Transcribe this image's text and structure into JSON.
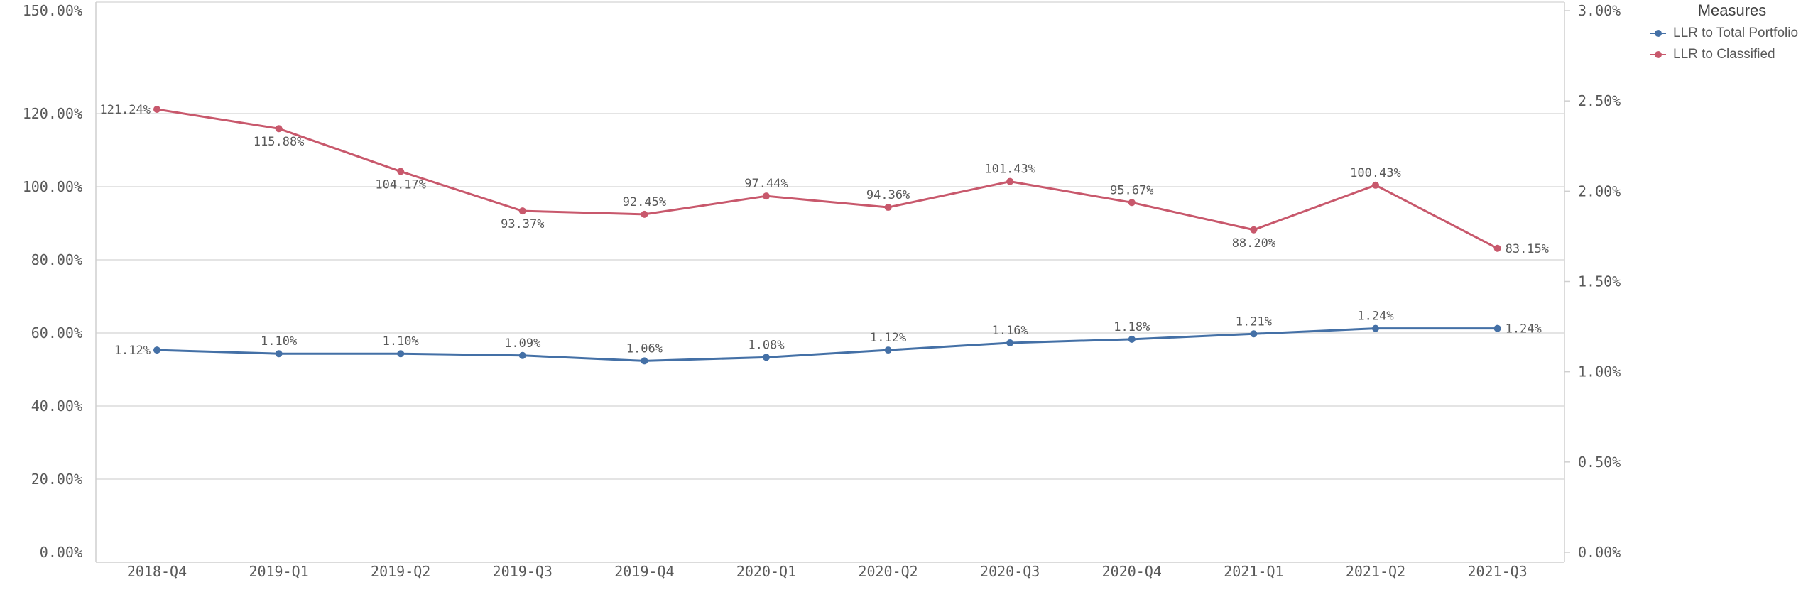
{
  "chart_data": {
    "type": "line",
    "categories": [
      "2018-Q4",
      "2019-Q1",
      "2019-Q2",
      "2019-Q3",
      "2019-Q4",
      "2020-Q1",
      "2020-Q2",
      "2020-Q3",
      "2020-Q4",
      "2021-Q1",
      "2021-Q2",
      "2021-Q3"
    ],
    "left_axis": {
      "ticks": [
        "0.00%",
        "20.00%",
        "40.00%",
        "60.00%",
        "80.00%",
        "100.00%",
        "120.00%",
        "150.00%"
      ],
      "tick_values": [
        0,
        20,
        40,
        60,
        80,
        100,
        120,
        150
      ],
      "range": [
        0,
        150
      ]
    },
    "right_axis": {
      "ticks": [
        "0.00%",
        "0.50%",
        "1.00%",
        "1.50%",
        "2.00%",
        "2.50%",
        "3.00%"
      ],
      "tick_values": [
        0,
        0.5,
        1.0,
        1.5,
        2.0,
        2.5,
        3.0
      ],
      "range": [
        0,
        3.0
      ]
    },
    "legend_title": "Measures",
    "legend_position": "top-right",
    "grid": true,
    "series": [
      {
        "name": "LLR to Total Portfolio",
        "axis": "right",
        "color": "#4470a6",
        "values": [
          1.12,
          1.1,
          1.1,
          1.09,
          1.06,
          1.08,
          1.12,
          1.16,
          1.18,
          1.21,
          1.24,
          1.24
        ],
        "labels": [
          "1.12%",
          "1.10%",
          "1.10%",
          "1.09%",
          "1.06%",
          "1.08%",
          "1.12%",
          "1.16%",
          "1.18%",
          "1.21%",
          "1.24%",
          "1.24%"
        ]
      },
      {
        "name": "LLR to Classified",
        "axis": "left",
        "color": "#c8586c",
        "values": [
          121.24,
          115.88,
          104.17,
          93.37,
          92.45,
          97.44,
          94.36,
          101.43,
          95.67,
          88.2,
          100.43,
          83.15
        ],
        "labels": [
          "121.24%",
          "115.88%",
          "104.17%",
          "93.37%",
          "92.45%",
          "97.44%",
          "94.36%",
          "101.43%",
          "95.67%",
          "88.20%",
          "100.43%",
          "83.15%"
        ]
      }
    ]
  }
}
